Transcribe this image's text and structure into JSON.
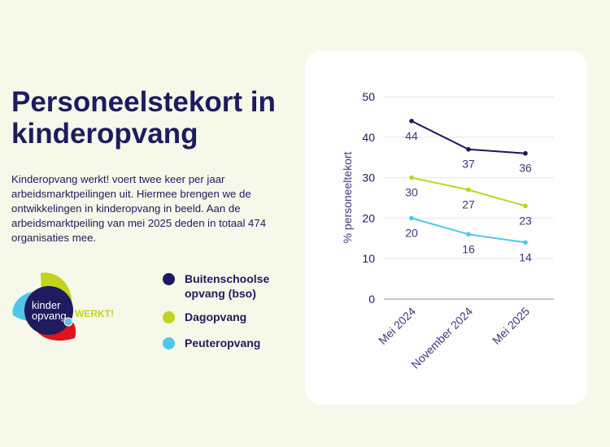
{
  "title": "Personeelstekort in kinderopvang",
  "intro": "Kinderopvang werkt! voert twee keer per jaar arbeidsmarktpeilingen uit. Hiermee brengen we de ontwikkelingen in kinderopvang in beeld. Aan de arbeidsmarktpeiling van mei 2025 deden in totaal 474 organisaties mee.",
  "logo": {
    "line1": "kinder",
    "line2": "opvang",
    "tagline": "WERKT!"
  },
  "colors": {
    "background": "#f6f8ea",
    "navy": "#1e1b5e",
    "bso": "#1a1860",
    "dagopvang": "#c2d21f",
    "peuteropvang": "#4fc7e8"
  },
  "legend": [
    {
      "label": "Buitenschoolse opvang (bso)",
      "color": "#1a1860"
    },
    {
      "label": "Dagopvang",
      "color": "#c2d21f"
    },
    {
      "label": "Peuteropvang",
      "color": "#4fc7e8"
    }
  ],
  "chart_data": {
    "type": "line",
    "categories": [
      "Mei 2024",
      "November 2024",
      "Mei 2025"
    ],
    "ylabel": "% personeeltekort",
    "xlabel": "",
    "ylim": [
      0,
      50
    ],
    "yticks": [
      0,
      10,
      20,
      30,
      40,
      50
    ],
    "grid": true,
    "series": [
      {
        "name": "Buitenschoolse opvang (bso)",
        "color": "#1a1860",
        "values": [
          44,
          37,
          36
        ]
      },
      {
        "name": "Dagopvang",
        "color": "#c2d21f",
        "values": [
          30,
          27,
          23
        ]
      },
      {
        "name": "Peuteropvang",
        "color": "#4fc7e8",
        "values": [
          20,
          16,
          14
        ]
      }
    ]
  }
}
